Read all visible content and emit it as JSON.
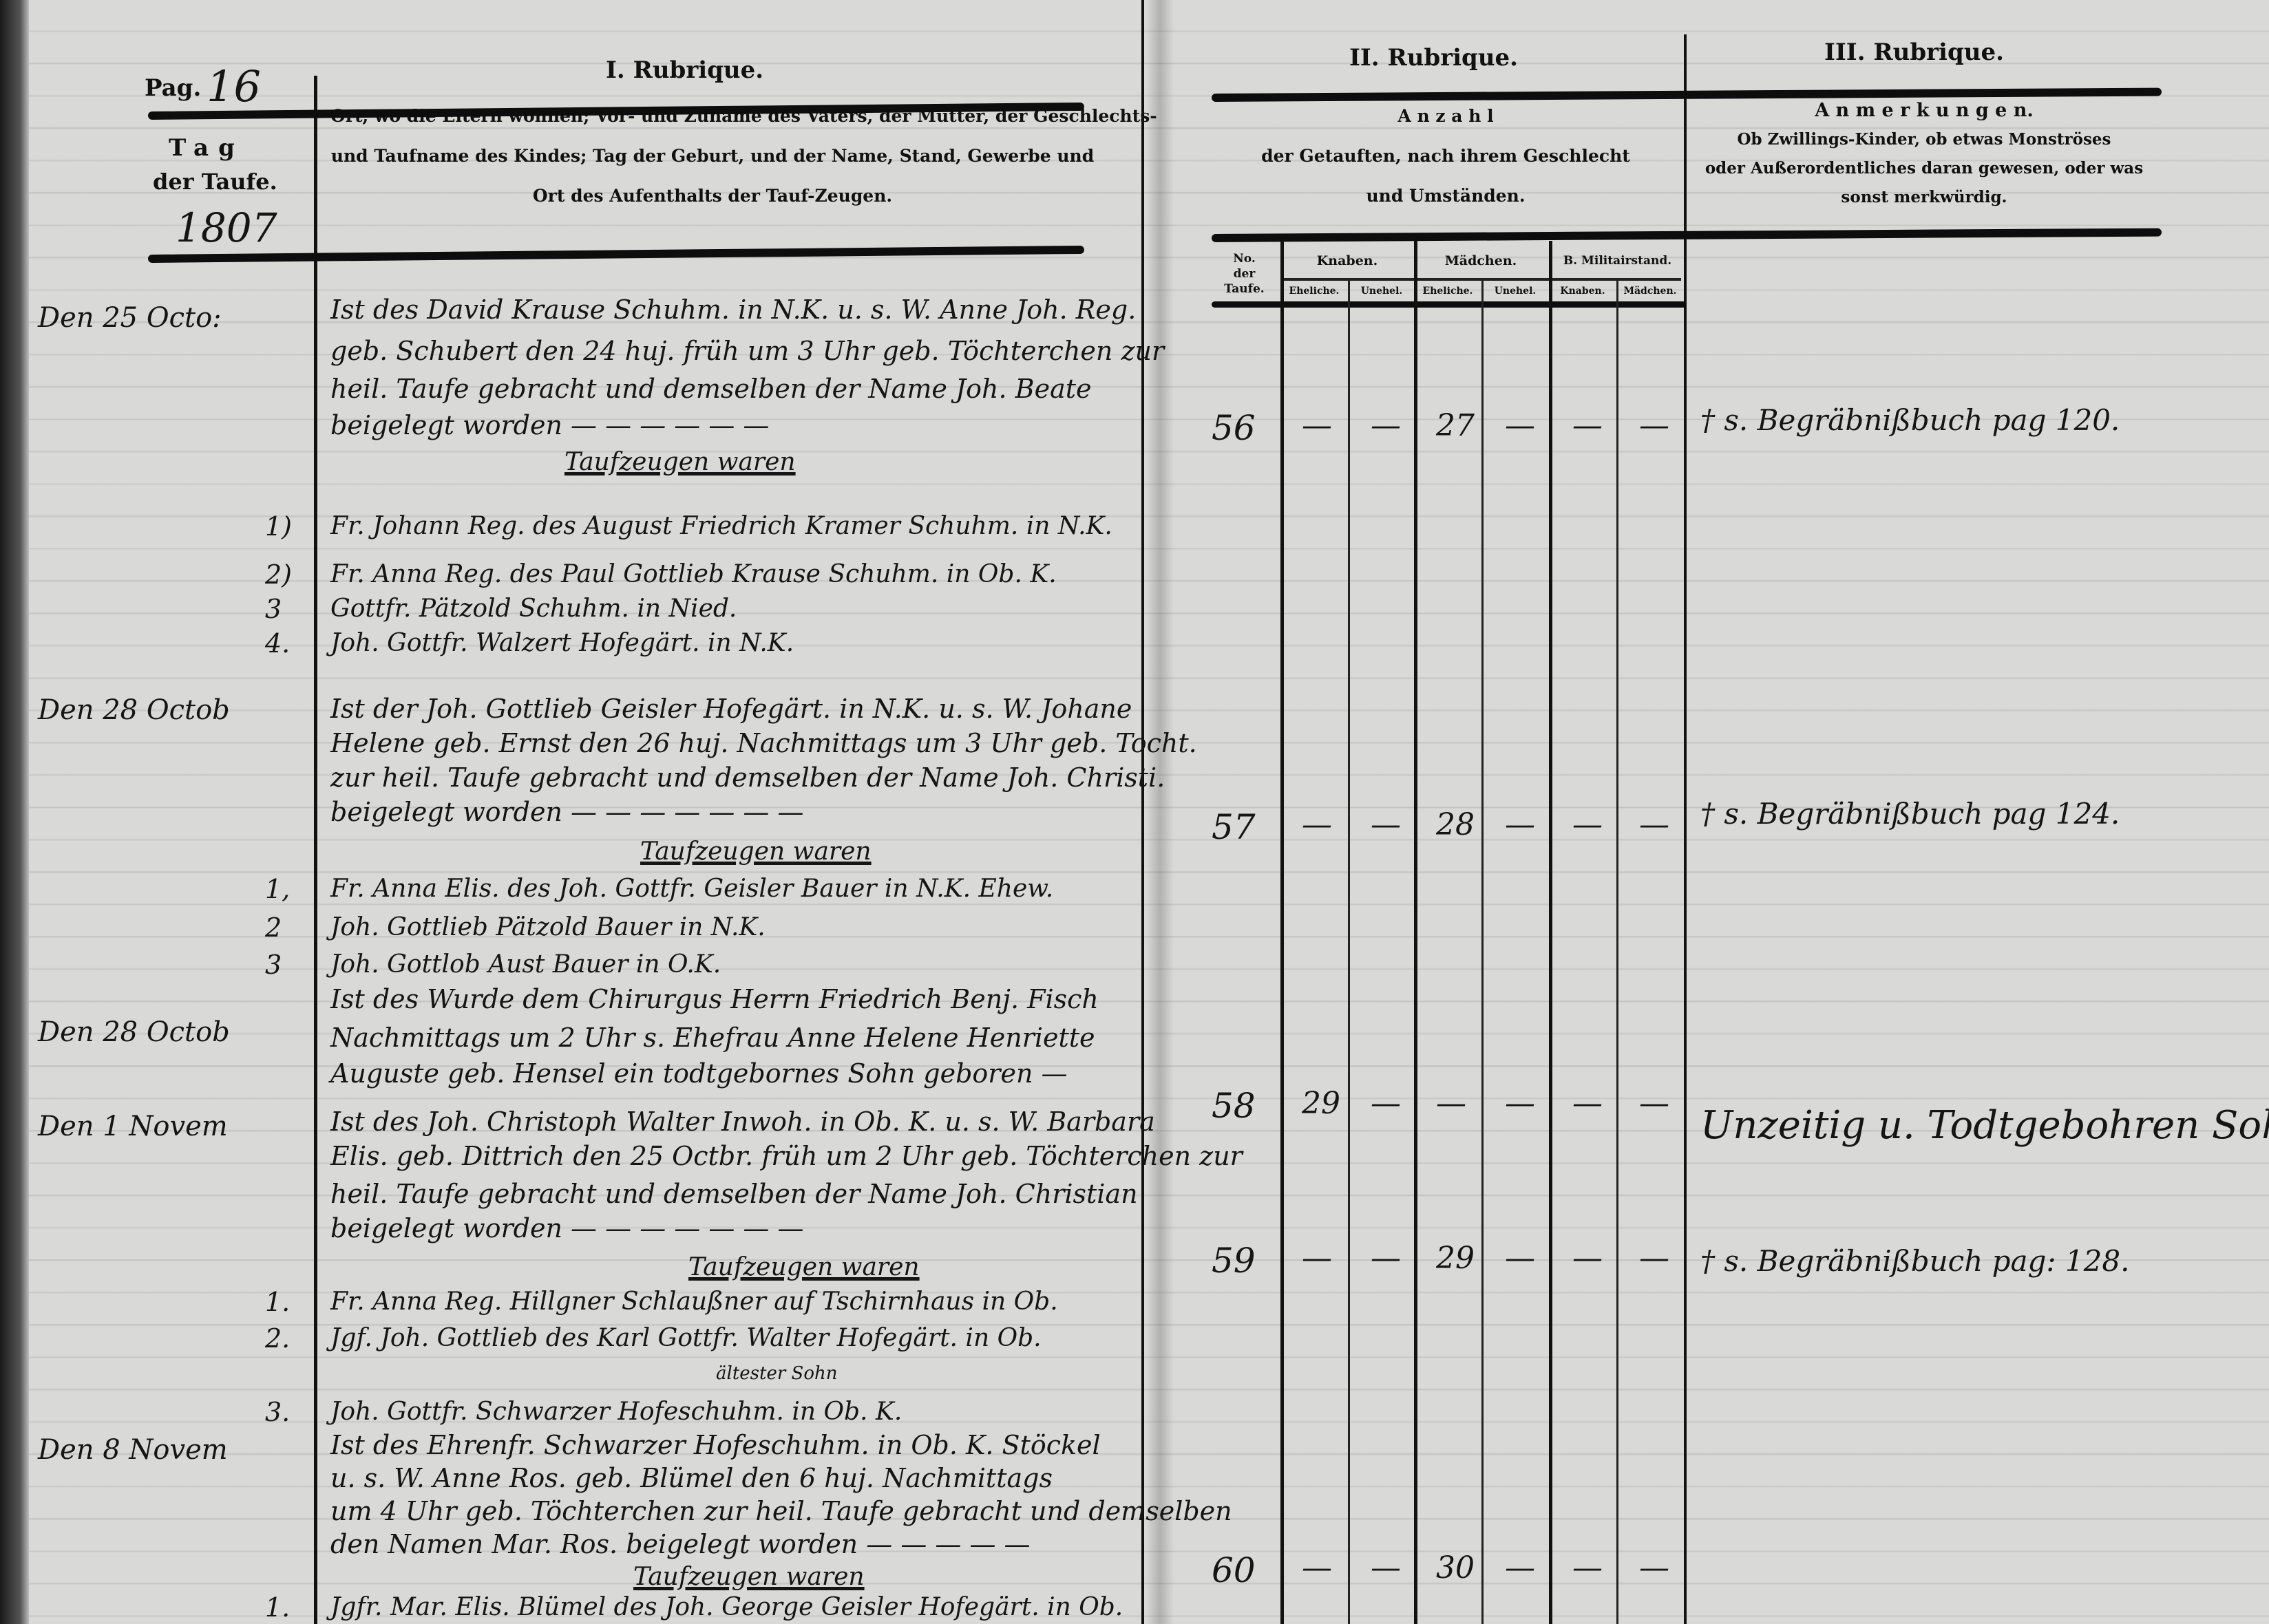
{
  "page": {
    "pag_label": "Pag.",
    "pag_number": "16",
    "year": "1807"
  },
  "rubrique_1": {
    "title": "I. Rubrique.",
    "date_header": [
      "Tag",
      "der Taufe."
    ],
    "header_lines": [
      "Ort, wo die Eltern wohnen; Vor- und Zuname des Vaters, der Mutter, der Geschlechts-",
      "und Taufname des Kindes; Tag der Geburt, und der Name, Stand, Gewerbe und",
      "Ort des Aufenthalts der Tauf-Zeugen."
    ]
  },
  "rubrique_2": {
    "title": "II. Rubrique.",
    "header_lines": [
      "A n z a h l",
      "der Getauften, nach ihrem Geschlecht",
      "und Umständen."
    ],
    "columns": {
      "no": [
        "No.",
        "der",
        "Taufe."
      ],
      "knaben": "Knaben.",
      "maedchen": "Mädchen.",
      "militair": "B. Militairstand.",
      "sub": [
        "Eheliche.",
        "Unehel.",
        "Eheliche.",
        "Unehel.",
        "Knaben.",
        "Mädchen."
      ]
    }
  },
  "rubrique_3": {
    "title": "III. Rubrique.",
    "header_lines": [
      "A n m e r k u n g e n.",
      "Ob Zwillings-Kinder, ob etwas Monströses",
      "oder Außerordentliches daran gewesen, oder was",
      "sonst merkwürdig."
    ]
  },
  "entries": [
    {
      "date": "Den 25 Octo:",
      "lines": [
        "Ist des David Krause Schuhm. in N.K. u. s. W. Anne Joh. Reg.",
        "geb. Schubert den 24 huj. früh um 3 Uhr geb. Töchterchen zur",
        "heil. Taufe gebracht und demselben der Name Joh. Beate",
        "beigelegt worden — — — — — —"
      ],
      "witnesses_heading": "Taufzeugen waren",
      "witnesses": [
        {
          "num": "1)",
          "text": "Fr. Johann Reg. des August Friedrich Kramer Schuhm. in N.K."
        },
        {
          "num": "2)",
          "text": "Fr. Anna Reg. des Paul Gottlieb Krause Schuhm. in Ob. K."
        },
        {
          "num": "3",
          "text": "Gottfr. Pätzold Schuhm. in Nied."
        },
        {
          "num": "4.",
          "text": "Joh. Gottfr. Walzert Hofegärt. in N.K."
        }
      ],
      "count": {
        "no": "56",
        "values": [
          "—",
          "—",
          "27",
          "—",
          "—",
          "—"
        ]
      },
      "remark": "† s. Begräbnißbuch pag 120."
    },
    {
      "date": "Den 28 Octob",
      "lines": [
        "Ist der Joh. Gottlieb Geisler Hofegärt. in N.K. u. s. W. Johane",
        "Helene geb. Ernst den 26 huj. Nachmittags um 3 Uhr geb. Tocht.",
        "zur heil. Taufe gebracht und demselben der Name Joh. Christi.",
        "beigelegt worden — — — — — — —"
      ],
      "witnesses_heading": "Taufzeugen waren",
      "witnesses": [
        {
          "num": "1,",
          "text": "Fr. Anna Elis. des Joh. Gottfr. Geisler Bauer in N.K. Ehew."
        },
        {
          "num": "2",
          "text": "Joh. Gottlieb Pätzold Bauer in N.K."
        },
        {
          "num": "3",
          "text": "Joh. Gottlob Aust Bauer in O.K."
        }
      ],
      "count": {
        "no": "57",
        "values": [
          "—",
          "—",
          "28",
          "—",
          "—",
          "—"
        ]
      },
      "remark": "† s. Begräbnißbuch pag 124."
    },
    {
      "date": "Den 28 Octob",
      "lines": [
        "Ist des Wurde dem Chirurgus Herrn Friedrich Benj. Fisch",
        "Nachmittags um 2 Uhr s. Ehefrau Anne Helene Henriette",
        "Auguste geb. Hensel ein todtgebornes Sohn geboren —"
      ],
      "witnesses_heading": "",
      "witnesses": [],
      "count": {
        "no": "58",
        "values": [
          "29",
          "—",
          "—",
          "—",
          "—",
          "—"
        ]
      },
      "remark": "Unzeitig u. Todtgebohren Sohn"
    },
    {
      "date": "Den 1 Novem",
      "lines": [
        "Ist des Joh. Christoph Walter Inwoh. in Ob. K. u. s. W. Barbara",
        "Elis. geb. Dittrich den 25 Octbr. früh um 2 Uhr geb. Töchterchen zur",
        "heil. Taufe gebracht und demselben der Name Joh. Christian",
        "beigelegt worden — — — — — — —"
      ],
      "witnesses_heading": "Taufzeugen waren",
      "witnesses": [
        {
          "num": "1.",
          "text": "Fr. Anna Reg. Hillgner Schlaußner auf Tschirnhaus in Ob."
        },
        {
          "num": "2.",
          "text": "Jgf. Joh. Gottlieb des Karl Gottfr. Walter Hofegärt. in Ob."
        },
        {
          "num": "3.",
          "text": "Joh. Gottfr. Schwarzer Hofeschuhm. in Ob. K."
        }
      ],
      "witness_note": "ältester Sohn",
      "count": {
        "no": "59",
        "values": [
          "—",
          "—",
          "29",
          "—",
          "—",
          "—"
        ]
      },
      "remark": "† s. Begräbnißbuch pag: 128."
    },
    {
      "date": "Den 8 Novem",
      "lines": [
        "Ist des Ehrenfr. Schwarzer Hofeschuhm. in Ob. K. Stöckel",
        "u. s. W. Anne Ros. geb. Blümel den 6 huj. Nachmittags",
        "um 4 Uhr geb. Töchterchen zur heil. Taufe gebracht und demselben",
        "den Namen Mar. Ros. beigelegt worden — — — — —"
      ],
      "witnesses_heading": "Taufzeugen waren",
      "witnesses": [
        {
          "num": "1.",
          "text": "Jgfr. Mar. Elis. Blümel des Joh. George Geisler Hofegärt. in Ob."
        }
      ],
      "count": {
        "no": "60",
        "values": [
          "—",
          "—",
          "30",
          "—",
          "—",
          "—"
        ]
      },
      "remark": ""
    }
  ]
}
